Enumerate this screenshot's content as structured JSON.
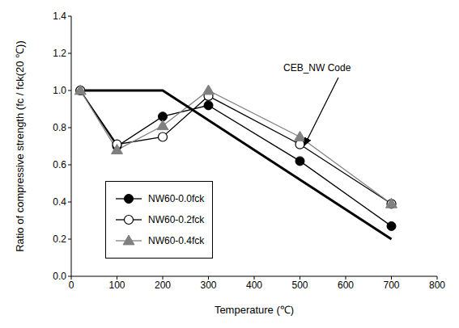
{
  "chart_data": {
    "type": "line",
    "x_label": "Temperature (℃)",
    "y_label": "Ratio of compressive strength (fc / fck(20 ℃))",
    "xlim": [
      0,
      800
    ],
    "xticks": [
      0,
      100,
      200,
      300,
      400,
      500,
      600,
      700,
      800
    ],
    "ylim": [
      0.0,
      1.4
    ],
    "yticks": [
      {
        "value": 0.0,
        "label": "0.0"
      },
      0.2,
      0.4,
      0.6,
      0.8,
      {
        "value": 1.0,
        "label": "1.0"
      },
      1.2,
      1.4
    ],
    "grid": false,
    "legend": "lower left",
    "series": [
      {
        "name": "NW60-0.0fck",
        "color": "#000000",
        "marker": "filled_circle",
        "line_style": "solid",
        "x": [
          20,
          100,
          200,
          300,
          500,
          700
        ],
        "values": [
          1.0,
          0.7,
          0.86,
          0.92,
          0.62,
          0.27
        ]
      },
      {
        "name": "NW60-0.2fck",
        "color": "#000000",
        "marker": "open_circle",
        "line_style": "solid",
        "x": [
          20,
          100,
          200,
          300,
          500,
          700
        ],
        "values": [
          1.0,
          0.71,
          0.75,
          0.97,
          0.71,
          0.39
        ]
      },
      {
        "name": "NW60-0.4fck",
        "color": "#808080",
        "marker": "triangle",
        "line_style": "solid",
        "x": [
          20,
          100,
          200,
          300,
          500,
          700
        ],
        "values": [
          1.0,
          0.68,
          0.81,
          1.0,
          0.75,
          0.39
        ]
      },
      {
        "color": "#000000",
        "marker": "none",
        "line_style": "solid",
        "x": [
          20,
          200,
          700
        ],
        "values": [
          1.0,
          1.0,
          0.2
        ]
      }
    ],
    "annotations": [
      {
        "text": "CEB_NW Code"
      }
    ]
  }
}
